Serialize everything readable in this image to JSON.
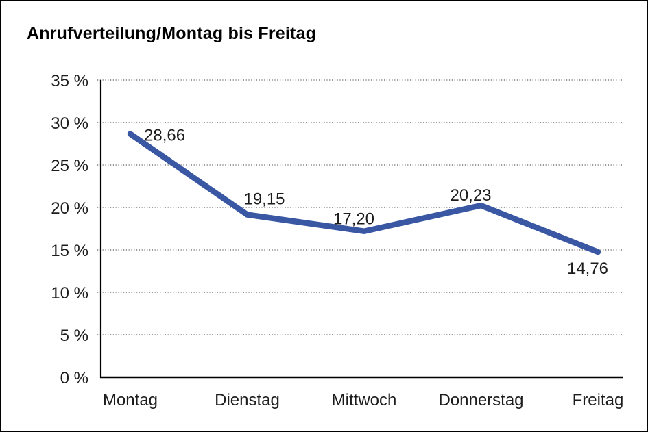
{
  "title": "Anrufverteilung/Montag bis Freitag",
  "chart_data": {
    "type": "line",
    "title": "Anrufverteilung/Montag bis Freitag",
    "categories": [
      "Montag",
      "Dienstag",
      "Mittwoch",
      "Donnerstag",
      "Freitag"
    ],
    "values": [
      28.66,
      19.15,
      17.2,
      20.23,
      14.76
    ],
    "value_labels": [
      "28,66",
      "19,15",
      "17,20",
      "20,23",
      "14,76"
    ],
    "y_tick_labels": [
      "0 %",
      "5 %",
      "10 %",
      "15 %",
      "20 %",
      "25 %",
      "30 %",
      "35 %"
    ],
    "ylim": [
      0,
      35
    ],
    "y_step": 5,
    "xlabel": "",
    "ylabel": "",
    "legend": "none",
    "grid": "horizontal-dotted",
    "line_color": "#3A57A4",
    "axis_color": "#000000",
    "gridline_color": "#5f5f5f",
    "text_color": "#1c1c1c",
    "background_color": "#ffffff",
    "border_color": "#000000"
  }
}
